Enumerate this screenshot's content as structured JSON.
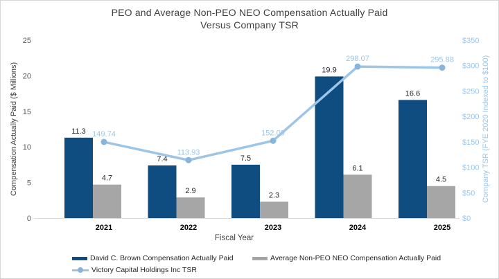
{
  "title": {
    "line1": "PEO and Average Non-PEO NEO Compensation Actually Paid",
    "line2": "Versus Company TSR"
  },
  "chart_data": {
    "type": "combo-bar-line",
    "title": "PEO and Average Non-PEO NEO Compensation Actually Paid Versus Company TSR",
    "categories": [
      "2021",
      "2022",
      "2023",
      "2024",
      "2025"
    ],
    "series": [
      {
        "name": "David C. Brown Compensation Actually Paid",
        "type": "bar",
        "axis": "left",
        "color": "#0F4C80",
        "values": [
          11.3,
          7.4,
          7.5,
          19.9,
          16.6
        ],
        "labels": [
          "11.3",
          "7.4",
          "7.5",
          "19.9",
          "16.6"
        ]
      },
      {
        "name": "Average Non-PEO NEO Compensation Actually Paid",
        "type": "bar",
        "axis": "left",
        "color": "#A6A6A6",
        "values": [
          4.7,
          2.9,
          2.3,
          6.1,
          4.5
        ],
        "labels": [
          "4.7",
          "2.9",
          "2.3",
          "6.1",
          "4.5"
        ]
      },
      {
        "name": "Victory Capital Holdings Inc TSR",
        "type": "line",
        "axis": "right",
        "color": "#9DC5E8",
        "marker_color": "#88B5DC",
        "values": [
          149.74,
          113.93,
          152.09,
          298.07,
          295.88
        ],
        "labels": [
          "149.74",
          "113.93",
          "152.09",
          "298.07",
          "295.88"
        ]
      }
    ],
    "xlabel": "Fiscal Year",
    "left_axis": {
      "label": "Compensation Actually Paid ($ Millions)",
      "min": 0,
      "max": 25,
      "step": 5,
      "tick_labels": [
        "0",
        "5",
        "10",
        "15",
        "20",
        "25"
      ],
      "color": "#595959"
    },
    "right_axis": {
      "label": "Company TSR (FYE 2020 Indexed to $100)",
      "min": 0,
      "max": 350,
      "step": 50,
      "tick_labels": [
        "$0",
        "$50",
        "$100",
        "$150",
        "$200",
        "$250",
        "$300",
        "$350"
      ],
      "color": "#9DC5E8"
    },
    "legend_position": "bottom",
    "grid": false,
    "axis_line_color": "#D9D9D9",
    "label_color": "#262626",
    "x_tick_color": "#000000"
  }
}
